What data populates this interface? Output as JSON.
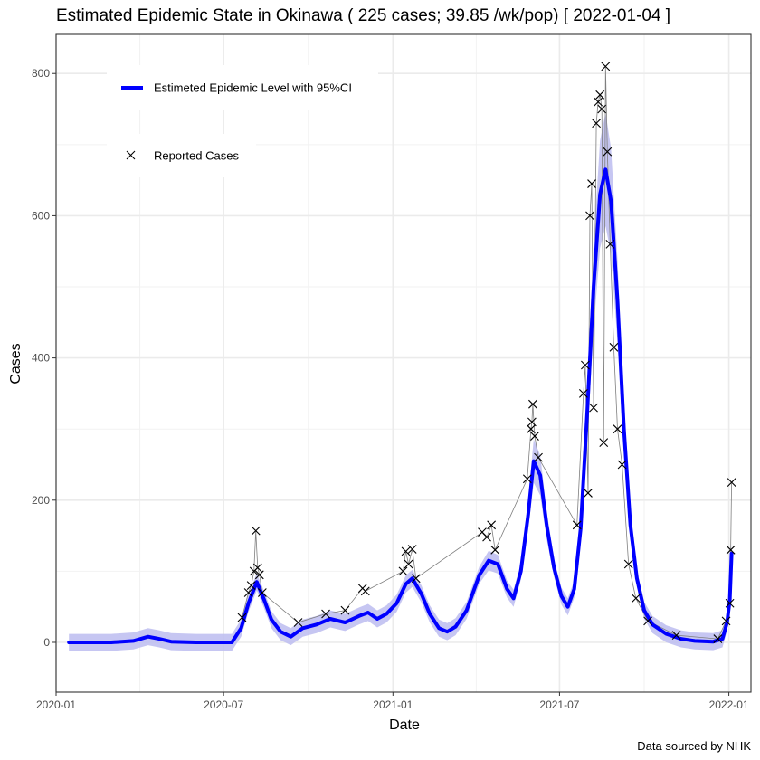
{
  "chart_data": {
    "type": "line",
    "title": "Estimated Epidemic State in Okinawa  ( 225 cases; 39.85 /wk/pop) [ 2022-01-04 ]",
    "xlabel": "Date",
    "ylabel": "Cases",
    "caption": "Data sourced by NHK",
    "x_ticks": [
      "2020-01",
      "2020-07",
      "2021-01",
      "2021-07",
      "2022-01"
    ],
    "y_ticks": [
      "0",
      "200",
      "400",
      "600",
      "800"
    ],
    "xlim": [
      "2020-01-01",
      "2022-01-25"
    ],
    "ylim": [
      -70,
      855
    ],
    "grid": true,
    "legend_position": "top-left",
    "colors": {
      "estimate": "#0000ff",
      "ci_band": "#bcbcf0",
      "reported": "#000000",
      "reported_line": "#7f7f7f"
    },
    "series": [
      {
        "name": "Estimeted Epidemic Level with 95%CI",
        "kind": "smoothed",
        "points": [
          [
            "2020-01-15",
            0
          ],
          [
            "2020-03-01",
            0
          ],
          [
            "2020-03-25",
            2
          ],
          [
            "2020-04-10",
            8
          ],
          [
            "2020-04-22",
            5
          ],
          [
            "2020-05-05",
            1
          ],
          [
            "2020-06-01",
            0
          ],
          [
            "2020-07-10",
            0
          ],
          [
            "2020-07-20",
            20
          ],
          [
            "2020-07-28",
            55
          ],
          [
            "2020-08-06",
            85
          ],
          [
            "2020-08-14",
            60
          ],
          [
            "2020-08-22",
            32
          ],
          [
            "2020-09-01",
            15
          ],
          [
            "2020-09-12",
            8
          ],
          [
            "2020-09-25",
            20
          ],
          [
            "2020-10-10",
            25
          ],
          [
            "2020-10-25",
            33
          ],
          [
            "2020-11-10",
            28
          ],
          [
            "2020-11-25",
            37
          ],
          [
            "2020-12-05",
            42
          ],
          [
            "2020-12-15",
            33
          ],
          [
            "2020-12-25",
            40
          ],
          [
            "2021-01-05",
            55
          ],
          [
            "2021-01-15",
            82
          ],
          [
            "2021-01-22",
            90
          ],
          [
            "2021-02-01",
            68
          ],
          [
            "2021-02-10",
            40
          ],
          [
            "2021-02-20",
            20
          ],
          [
            "2021-03-01",
            15
          ],
          [
            "2021-03-10",
            22
          ],
          [
            "2021-03-22",
            45
          ],
          [
            "2021-04-05",
            95
          ],
          [
            "2021-04-15",
            115
          ],
          [
            "2021-04-25",
            110
          ],
          [
            "2021-05-05",
            75
          ],
          [
            "2021-05-12",
            62
          ],
          [
            "2021-05-20",
            100
          ],
          [
            "2021-05-28",
            180
          ],
          [
            "2021-06-03",
            255
          ],
          [
            "2021-06-10",
            235
          ],
          [
            "2021-06-17",
            165
          ],
          [
            "2021-06-25",
            105
          ],
          [
            "2021-07-03",
            65
          ],
          [
            "2021-07-10",
            50
          ],
          [
            "2021-07-17",
            75
          ],
          [
            "2021-07-24",
            160
          ],
          [
            "2021-07-31",
            320
          ],
          [
            "2021-08-07",
            500
          ],
          [
            "2021-08-14",
            630
          ],
          [
            "2021-08-20",
            665
          ],
          [
            "2021-08-26",
            620
          ],
          [
            "2021-09-02",
            480
          ],
          [
            "2021-09-09",
            300
          ],
          [
            "2021-09-16",
            165
          ],
          [
            "2021-09-23",
            90
          ],
          [
            "2021-10-01",
            45
          ],
          [
            "2021-10-10",
            25
          ],
          [
            "2021-10-25",
            12
          ],
          [
            "2021-11-10",
            5
          ],
          [
            "2021-11-25",
            2
          ],
          [
            "2021-12-15",
            1
          ],
          [
            "2021-12-25",
            5
          ],
          [
            "2021-12-30",
            28
          ],
          [
            "2022-01-02",
            60
          ],
          [
            "2022-01-04",
            125
          ]
        ]
      },
      {
        "name": "Reported Cases",
        "kind": "markers",
        "points": [
          [
            "2020-07-21",
            35
          ],
          [
            "2020-07-28",
            70
          ],
          [
            "2020-07-31",
            80
          ],
          [
            "2020-08-03",
            100
          ],
          [
            "2020-08-05",
            157
          ],
          [
            "2020-08-07",
            105
          ],
          [
            "2020-08-09",
            95
          ],
          [
            "2020-08-12",
            70
          ],
          [
            "2020-09-20",
            28
          ],
          [
            "2020-10-20",
            40
          ],
          [
            "2020-11-10",
            45
          ],
          [
            "2020-11-29",
            76
          ],
          [
            "2020-12-02",
            72
          ],
          [
            "2021-01-12",
            100
          ],
          [
            "2021-01-15",
            128
          ],
          [
            "2021-01-18",
            110
          ],
          [
            "2021-01-22",
            131
          ],
          [
            "2021-01-26",
            90
          ],
          [
            "2021-04-08",
            155
          ],
          [
            "2021-04-13",
            148
          ],
          [
            "2021-04-18",
            165
          ],
          [
            "2021-04-22",
            130
          ],
          [
            "2021-05-27",
            230
          ],
          [
            "2021-05-31",
            300
          ],
          [
            "2021-06-01",
            310
          ],
          [
            "2021-06-02",
            335
          ],
          [
            "2021-06-04",
            290
          ],
          [
            "2021-06-08",
            260
          ],
          [
            "2021-07-20",
            165
          ],
          [
            "2021-07-27",
            350
          ],
          [
            "2021-07-29",
            390
          ],
          [
            "2021-08-01",
            210
          ],
          [
            "2021-08-03",
            600
          ],
          [
            "2021-08-05",
            645
          ],
          [
            "2021-08-07",
            330
          ],
          [
            "2021-08-10",
            730
          ],
          [
            "2021-08-12",
            760
          ],
          [
            "2021-08-14",
            770
          ],
          [
            "2021-08-16",
            750
          ],
          [
            "2021-08-18",
            281
          ],
          [
            "2021-08-20",
            810
          ],
          [
            "2021-08-22",
            690
          ],
          [
            "2021-08-25",
            560
          ],
          [
            "2021-08-29",
            415
          ],
          [
            "2021-09-02",
            300
          ],
          [
            "2021-09-07",
            250
          ],
          [
            "2021-09-14",
            110
          ],
          [
            "2021-09-22",
            62
          ],
          [
            "2021-10-05",
            30
          ],
          [
            "2021-11-05",
            10
          ],
          [
            "2021-12-20",
            5
          ],
          [
            "2021-12-29",
            30
          ],
          [
            "2022-01-02",
            55
          ],
          [
            "2022-01-03",
            130
          ],
          [
            "2022-01-04",
            225
          ]
        ]
      }
    ]
  }
}
